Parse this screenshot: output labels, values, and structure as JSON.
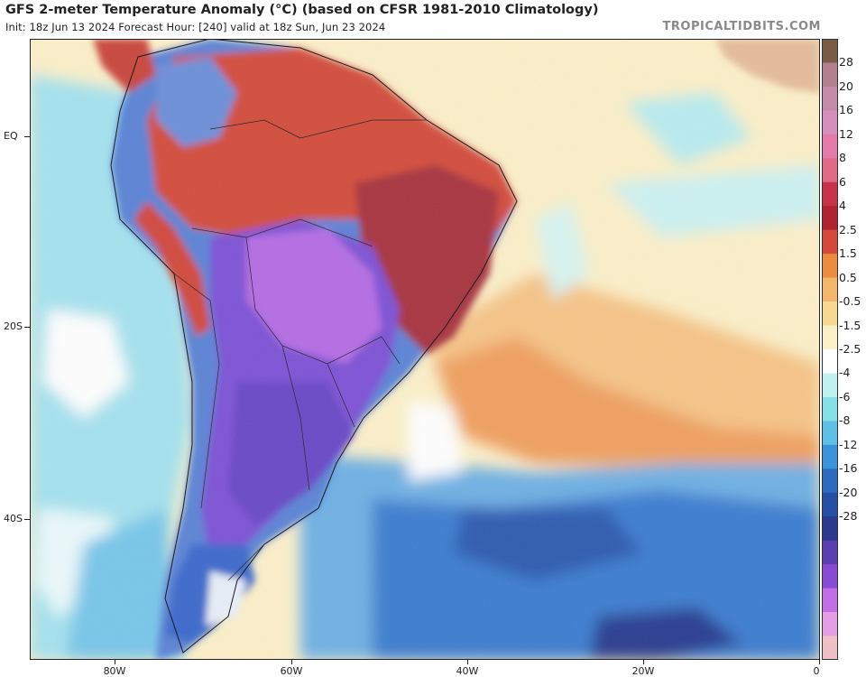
{
  "title": "GFS 2-meter Temperature Anomaly (°C) (based on CFSR 1981-2010 Climatology)",
  "subtitle": "Init: 18z Jun 13 2024   Forecast Hour: [240]   valid at 18z Sun, Jun 23 2024",
  "brand": "TROPICALTIDBITS.COM",
  "lat_labels": [
    "EQ",
    "20S",
    "40S"
  ],
  "lon_labels": [
    "80W",
    "60W",
    "40W",
    "20W",
    "0"
  ],
  "colorbar": {
    "labels": [
      "28",
      "20",
      "16",
      "12",
      "8",
      "6",
      "4",
      "2.5",
      "1.5",
      "0.5",
      "-0.5",
      "-1.5",
      "-2.5",
      "-4",
      "-6",
      "-8",
      "-12",
      "-16",
      "-20",
      "-28"
    ],
    "colors": [
      "#7a5b45",
      "#b27f8e",
      "#c48aa7",
      "#d58fbd",
      "#e47aa7",
      "#e06a86",
      "#c9334a",
      "#b12331",
      "#d5493b",
      "#ec8b3e",
      "#f3b66b",
      "#f7d891",
      "#fcf1c6",
      "#ffffff",
      "#bff2ee",
      "#86e0e8",
      "#5ec0e6",
      "#3b93d9",
      "#2d6bc0",
      "#264fa6",
      "#2b3a8c",
      "#5b3fb0",
      "#8a4bd4",
      "#c06de6",
      "#e49ee6",
      "#f0c0c8"
    ]
  },
  "colors": {
    "land_warm": "#c9473c",
    "land_hot": "#a8363f",
    "land_cold": "#7a4ed0",
    "land_cool": "#4c6fcf",
    "ocean_mild": "#fbe9bc",
    "ocean_warm": "#f3b36d",
    "ocean_cool": "#9fdfee",
    "ocean_cold": "#3e7fd1"
  }
}
